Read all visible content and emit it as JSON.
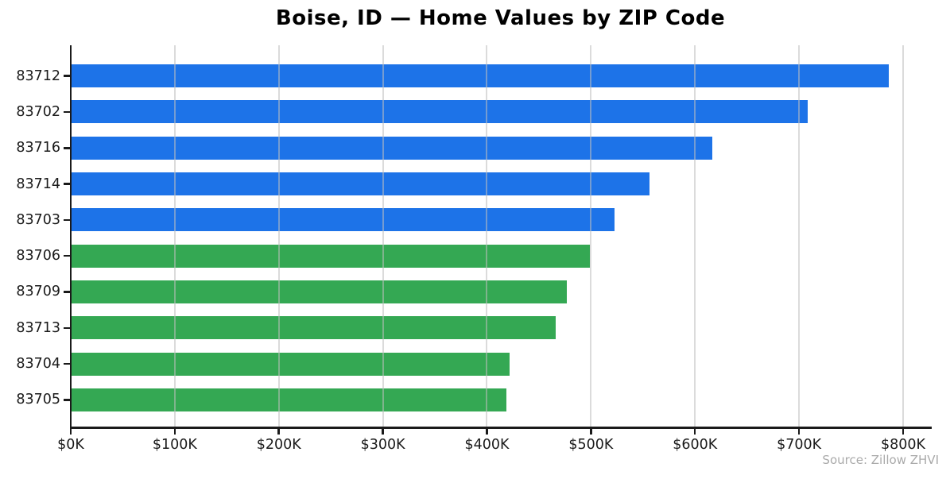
{
  "title": "Boise, ID — Home Values by ZIP Code",
  "source_note": "Source: Zillow ZHVI",
  "colors": {
    "blue_bar": "#1D73E8",
    "green_bar": "#34A853",
    "axis": "#1A1A1A",
    "gridline": "#D9D9D9",
    "source_text": "#AAAAAA"
  },
  "chart_data": {
    "type": "bar",
    "orientation": "horizontal",
    "title": "Boise, ID — Home Values by ZIP Code",
    "categories": [
      "83712",
      "83702",
      "83716",
      "83714",
      "83703",
      "83706",
      "83709",
      "83713",
      "83704",
      "83705"
    ],
    "values": [
      786000,
      708000,
      617000,
      556000,
      523000,
      499000,
      477000,
      466000,
      422000,
      419000
    ],
    "bar_colors": [
      "#1D73E8",
      "#1D73E8",
      "#1D73E8",
      "#1D73E8",
      "#1D73E8",
      "#34A853",
      "#34A853",
      "#34A853",
      "#34A853",
      "#34A853"
    ],
    "xlabel": "",
    "ylabel": "",
    "xlim": [
      0,
      826000
    ],
    "x_ticks": [
      0,
      100000,
      200000,
      300000,
      400000,
      500000,
      600000,
      700000,
      800000
    ],
    "x_tick_labels": [
      "$0K",
      "$100K",
      "$200K",
      "$300K",
      "$400K",
      "$500K",
      "$600K",
      "$700K",
      "$800K"
    ],
    "grid": "vertical-over-bars",
    "legend": "none",
    "annotation": "Source: Zillow ZHVI"
  }
}
